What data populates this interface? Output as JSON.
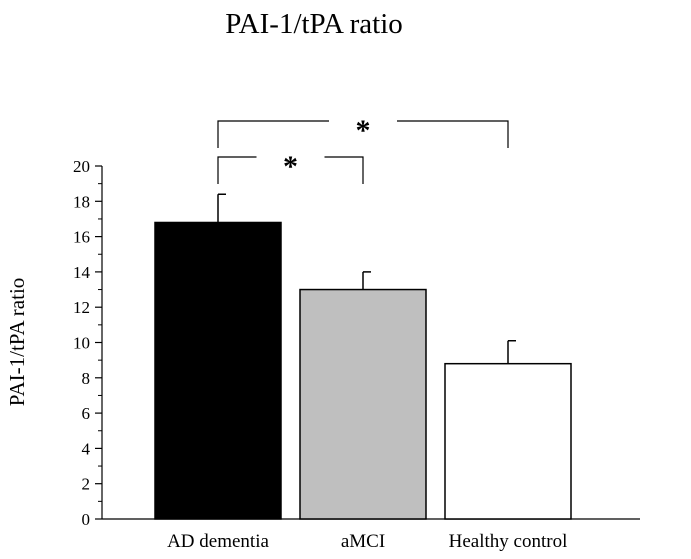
{
  "chart_data": {
    "type": "bar",
    "title": "PAI-1/tPA ratio",
    "ylabel": "PAI-1/tPA ratio",
    "xlabel": "",
    "categories": [
      "AD dementia",
      "aMCI",
      "Healthy control"
    ],
    "values": [
      16.8,
      13.0,
      8.8
    ],
    "errors": [
      1.6,
      1.0,
      1.3
    ],
    "colors": [
      "#000000",
      "#bfbfbf",
      "#ffffff"
    ],
    "ylim": [
      0,
      20
    ],
    "yticks": [
      "0",
      "2",
      "4",
      "6",
      "8",
      "10",
      "12",
      "14",
      "16",
      "18",
      "20"
    ],
    "grid": false,
    "legend": "none",
    "significance": [
      {
        "from": 0,
        "to": 1,
        "label": "*"
      },
      {
        "from": 0,
        "to": 2,
        "label": "*"
      }
    ]
  }
}
